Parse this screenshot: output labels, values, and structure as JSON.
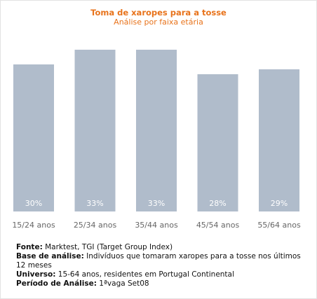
{
  "chart_data": {
    "type": "bar",
    "title": "Toma de xaropes para a tosse",
    "subtitle": "Análise por faixa etária",
    "categories": [
      "15/24 anos",
      "25/34 anos",
      "35/44 anos",
      "45/54 anos",
      "55/64 anos"
    ],
    "values": [
      30,
      33,
      33,
      28,
      29
    ],
    "value_labels": [
      "30%",
      "33%",
      "33%",
      "28%",
      "29%"
    ],
    "grid": false,
    "legend": "none"
  },
  "colors": {
    "bar": "#b0bccb",
    "title": "#e8731b",
    "value_label": "#ffffff",
    "tick_label": "#666666"
  },
  "footer": {
    "source_label": "Fonte:",
    "source_text": " Marktest, TGI (Target Group Index)",
    "base_label": "Base de análise:",
    "base_text": " Indivíduos que tomaram xaropes para a tosse nos últimos 12 meses",
    "universe_label": "Universo:",
    "universe_text": " 15-64 anos, residentes em Portugal Continental",
    "period_label": "Período de Análise:",
    "period_text": " 1ªvaga Set08"
  }
}
